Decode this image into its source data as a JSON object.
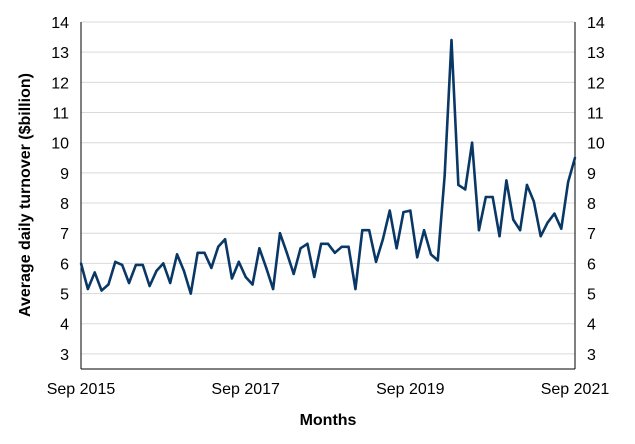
{
  "chart_data": {
    "type": "line",
    "title": "",
    "xlabel": "Months",
    "ylabel": "Average daily turnover ($billion)",
    "ylim": [
      2.5,
      14
    ],
    "yticks": [
      3,
      4,
      5,
      6,
      7,
      8,
      9,
      10,
      11,
      12,
      13,
      14
    ],
    "x_ticks": [
      {
        "label": "Sep 2015",
        "month_index": 0
      },
      {
        "label": "Sep 2017",
        "month_index": 24
      },
      {
        "label": "Sep 2019",
        "month_index": 48
      },
      {
        "label": "Sep 2021",
        "month_index": 72
      }
    ],
    "grid": true,
    "legend": "none",
    "colors": {
      "line": "#0a3866"
    },
    "series": [
      {
        "x": [
          "2015-09",
          "2015-10",
          "2015-11",
          "2015-12",
          "2016-01",
          "2016-02",
          "2016-03",
          "2016-04",
          "2016-05",
          "2016-06",
          "2016-07",
          "2016-08",
          "2016-09",
          "2016-10",
          "2016-11",
          "2016-12",
          "2017-01",
          "2017-02",
          "2017-03",
          "2017-04",
          "2017-05",
          "2017-06",
          "2017-07",
          "2017-08",
          "2017-09",
          "2017-10",
          "2017-11",
          "2017-12",
          "2018-01",
          "2018-02",
          "2018-03",
          "2018-04",
          "2018-05",
          "2018-06",
          "2018-07",
          "2018-08",
          "2018-09",
          "2018-10",
          "2018-11",
          "2018-12",
          "2019-01",
          "2019-02",
          "2019-03",
          "2019-04",
          "2019-05",
          "2019-06",
          "2019-07",
          "2019-08",
          "2019-09",
          "2019-10",
          "2019-11",
          "2019-12",
          "2020-01",
          "2020-02",
          "2020-03",
          "2020-04",
          "2020-05",
          "2020-06",
          "2020-07",
          "2020-08",
          "2020-09",
          "2020-10",
          "2020-11",
          "2020-12",
          "2021-01",
          "2021-02",
          "2021-03",
          "2021-04",
          "2021-05",
          "2021-06",
          "2021-07",
          "2021-08",
          "2021-09"
        ],
        "values": [
          6.0,
          5.15,
          5.7,
          5.1,
          5.3,
          6.05,
          5.95,
          5.35,
          5.95,
          5.95,
          5.25,
          5.75,
          6.0,
          5.35,
          6.3,
          5.75,
          5.0,
          6.35,
          6.35,
          5.85,
          6.55,
          6.8,
          5.5,
          6.05,
          5.55,
          5.3,
          6.5,
          5.85,
          5.15,
          7.0,
          6.35,
          5.65,
          6.5,
          6.65,
          5.55,
          6.65,
          6.65,
          6.35,
          6.55,
          6.55,
          5.15,
          7.1,
          7.1,
          6.05,
          6.8,
          7.75,
          6.5,
          7.7,
          7.75,
          6.2,
          7.1,
          6.3,
          6.1,
          8.9,
          13.4,
          8.6,
          8.45,
          10.0,
          7.1,
          8.2,
          8.2,
          6.9,
          8.75,
          7.45,
          7.1,
          8.6,
          8.05,
          6.9,
          7.35,
          7.65,
          7.15,
          8.7,
          9.5
        ]
      }
    ]
  }
}
